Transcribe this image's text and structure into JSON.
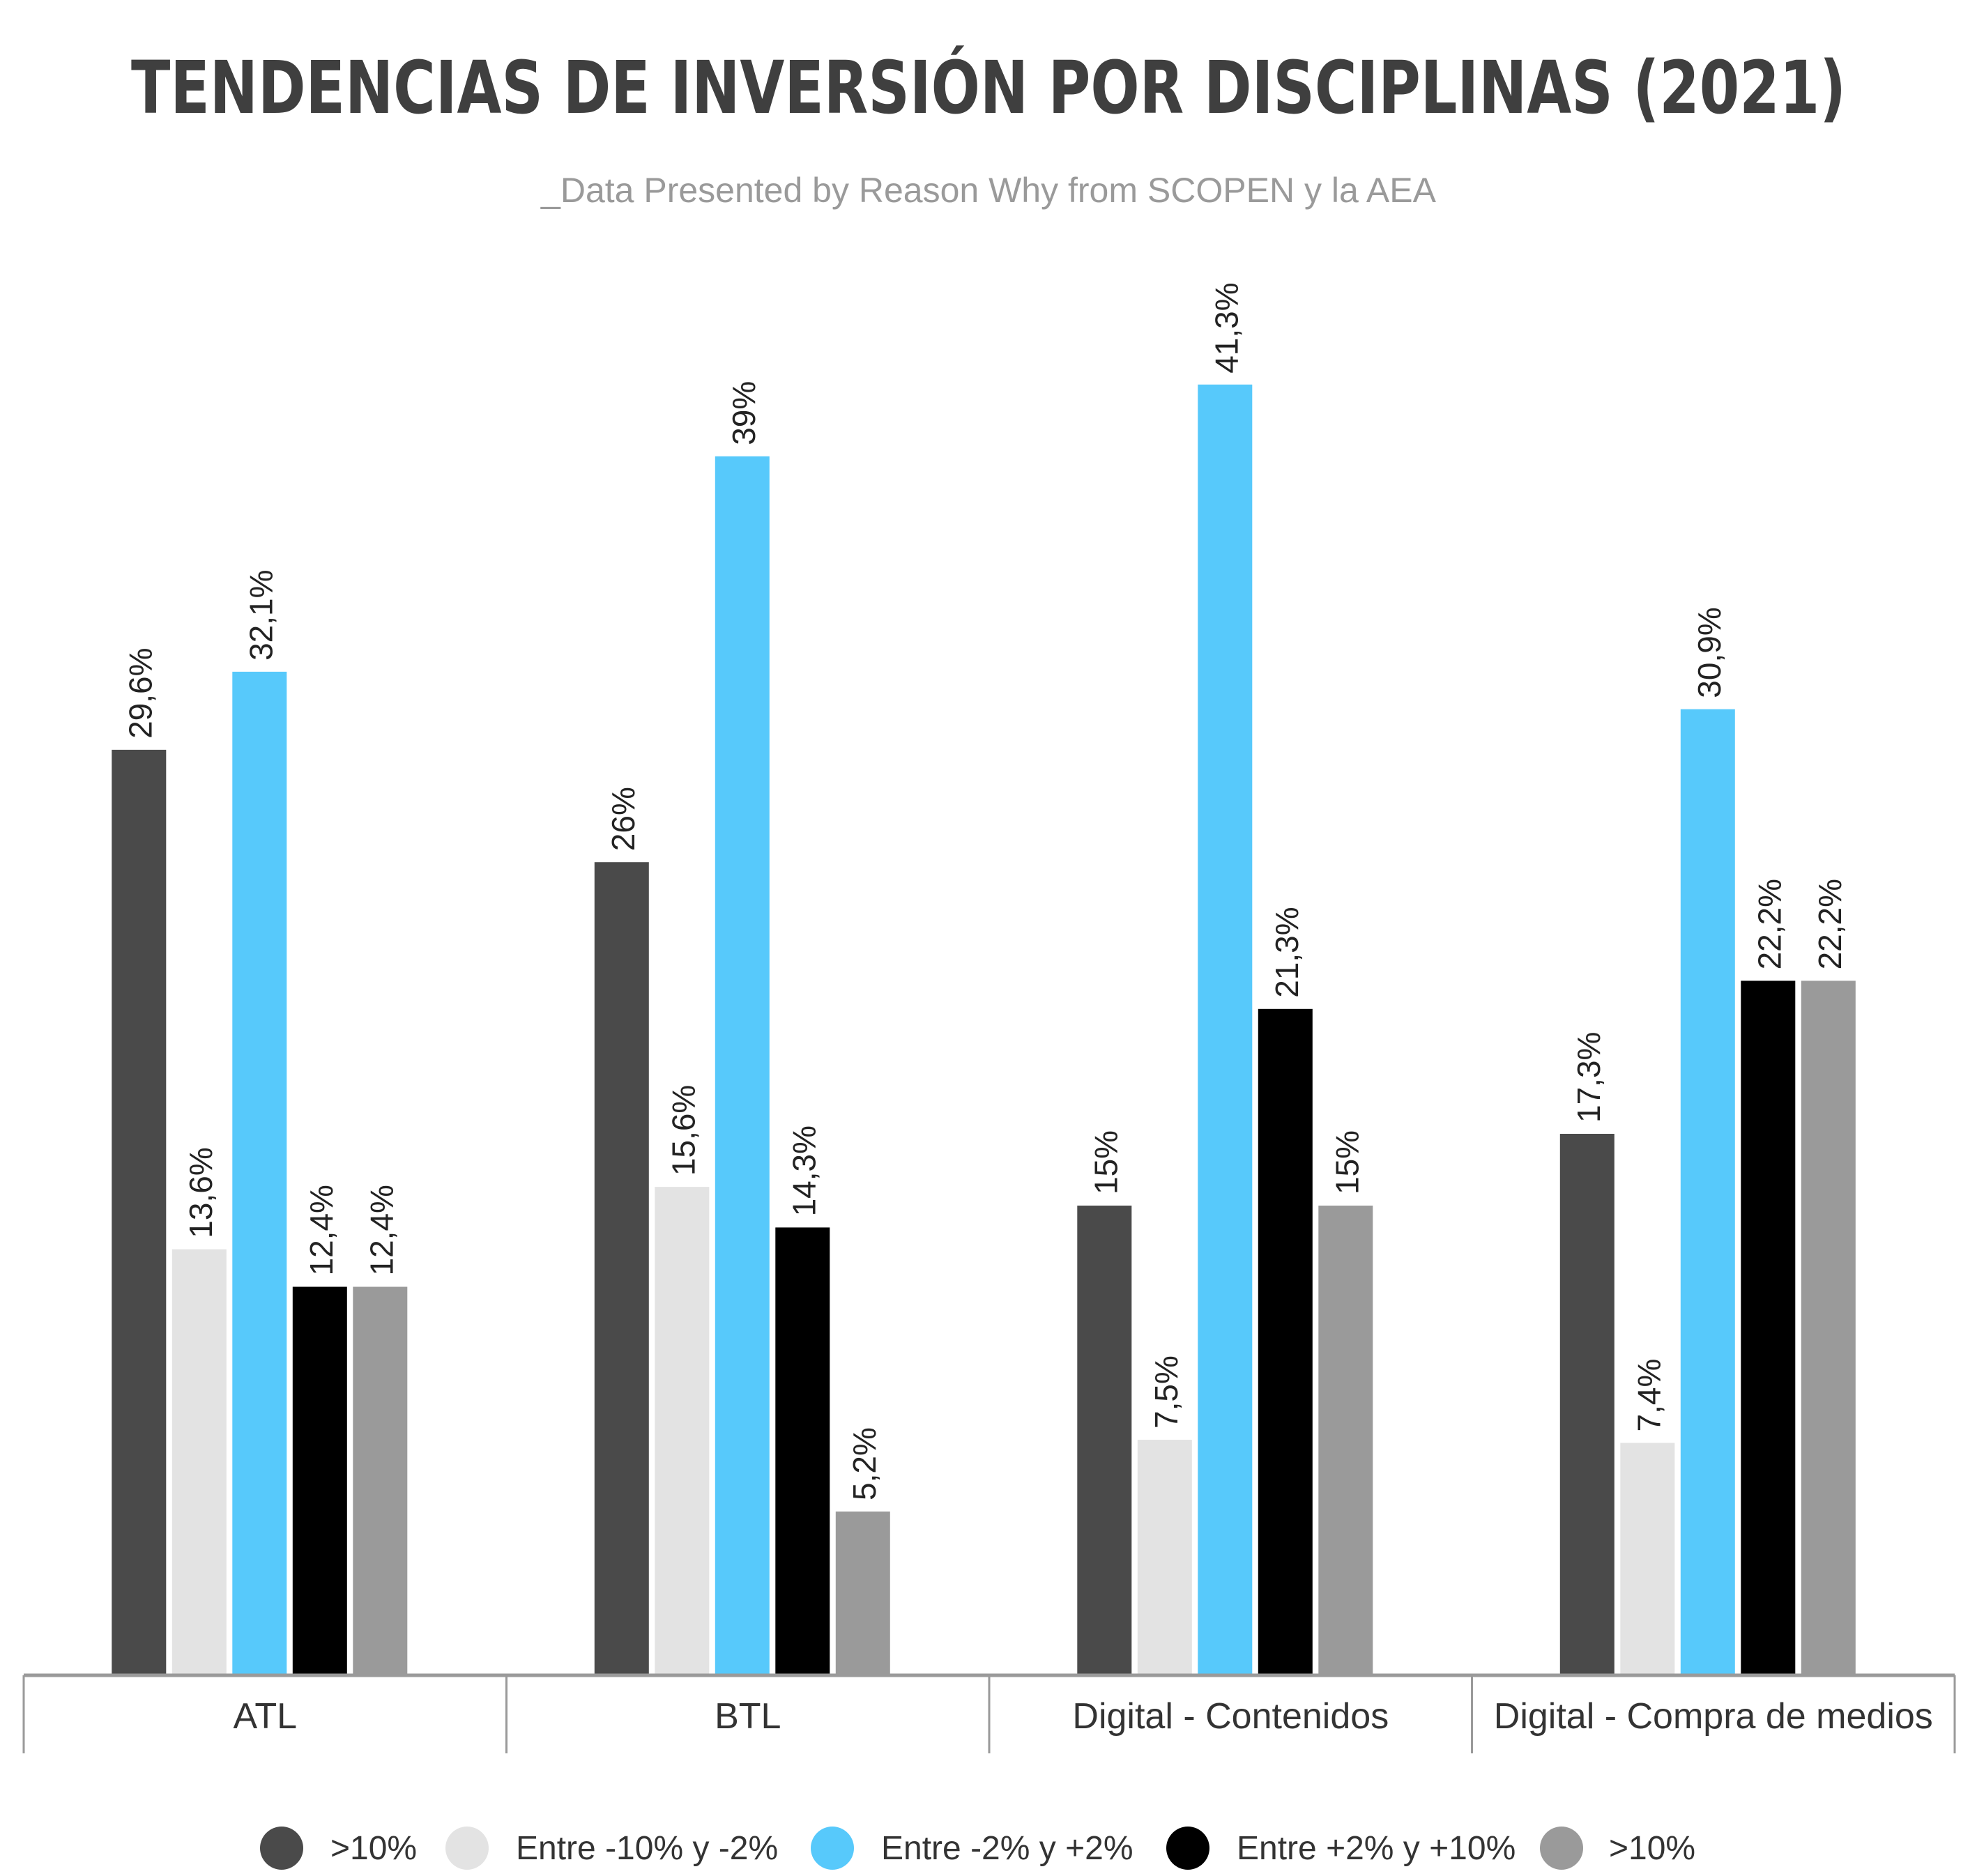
{
  "chart_data": {
    "type": "bar",
    "title": "TENDENCIAS DE INVERSIÓN POR DISCIPLINAS (2021)",
    "subtitle": "_Data Presented by Reason Why from SCOPEN y la AEA",
    "categories": [
      "ATL",
      "BTL",
      "Digital - Contenidos",
      "Digital - Compra de medios"
    ],
    "ylim": [
      0,
      45
    ],
    "legend_position": "bottom",
    "grid": false,
    "series": [
      {
        "name": ">10%",
        "color": "#4a4a4a",
        "values": [
          29.6,
          26,
          15,
          17.3
        ],
        "labels": [
          "29,6%",
          "26%",
          "15%",
          "17,3%"
        ]
      },
      {
        "name": "Entre -10% y -2%",
        "color": "#e3e3e3",
        "values": [
          13.6,
          15.6,
          7.5,
          7.4
        ],
        "labels": [
          "13,6%",
          "15,6%",
          "7,5%",
          "7,4%"
        ]
      },
      {
        "name": "Entre -2% y +2%",
        "color": "#57c9fb",
        "values": [
          32.1,
          39,
          41.3,
          30.9
        ],
        "labels": [
          "32,1%",
          "39%",
          "41,3%",
          "30,9%"
        ]
      },
      {
        "name": "Entre +2% y +10%",
        "color": "#000000",
        "values": [
          12.4,
          14.3,
          21.3,
          22.2
        ],
        "labels": [
          "12,4%",
          "14,3%",
          "21,3%",
          "22,2%"
        ]
      },
      {
        "name": ">10%",
        "color": "#9a9a9a",
        "values": [
          12.4,
          5.2,
          15,
          22.2
        ],
        "labels": [
          "12,4%",
          "5,2%",
          "15%",
          "22,2%"
        ]
      }
    ]
  }
}
